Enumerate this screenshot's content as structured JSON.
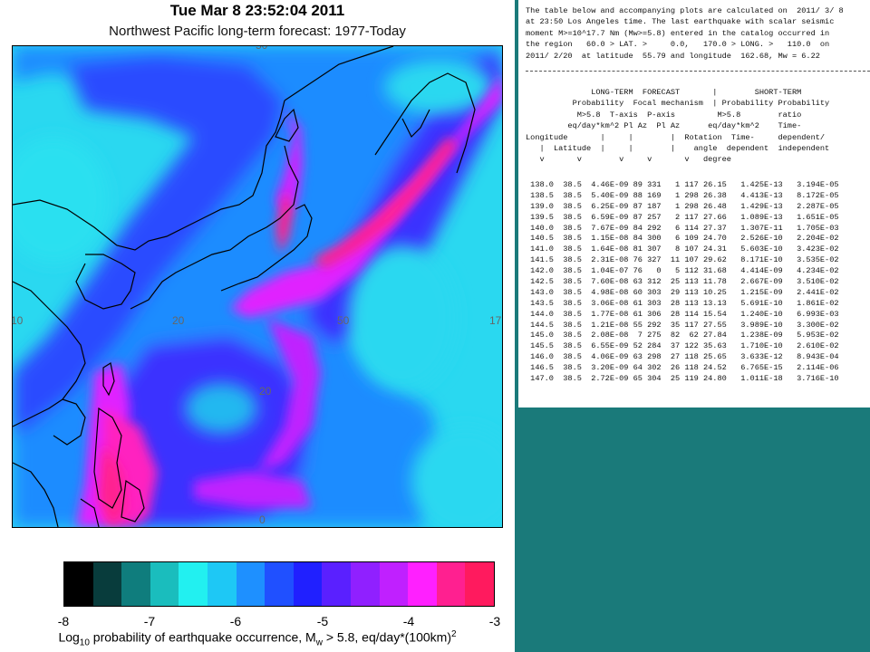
{
  "header": {
    "datetime": "Tue Mar  8 23:52:04 2011",
    "subtitle": "Northwest Pacific long-term forecast: 1977-Today"
  },
  "map": {
    "lon_ticks": [
      "10",
      "20",
      "50",
      "17"
    ],
    "lat_ticks": [
      "20",
      "0"
    ],
    "top_tick": "50"
  },
  "colorbar": {
    "colors": [
      "#000000",
      "#083c3c",
      "#0f7d7d",
      "#1abdbd",
      "#22f0f0",
      "#1ec8f5",
      "#1e90ff",
      "#2050ff",
      "#2020ff",
      "#5a20ff",
      "#9020ff",
      "#c020ff",
      "#ff20ff",
      "#ff2090",
      "#ff1a5e"
    ],
    "labels": [
      "-8",
      "-7",
      "-6",
      "-5",
      "-4",
      "-3"
    ],
    "caption_prefix": "Log",
    "caption_sub": "10",
    "caption_mid": " probability of earthquake occurrence, M",
    "caption_sub2": "w",
    "caption_end": " > 5.8, eq/day*(100km)",
    "caption_sup": "2"
  },
  "report": {
    "intro_lines": [
      "The table below and accompanying plots are calculated on  2011/ 3/ 8",
      "at 23:50 Los Angeles time. The last earthquake with scalar seismic",
      "moment M>=10^17.7 Nm (Mw>=5.8) entered in the catalog occurred in",
      "the region   60.0 > LAT. >     0.0,   170.0 > LONG. >   110.0  on",
      "2011/ 2/20  at latitude  55.79 and longitude  162.68, Mw = 6.22"
    ],
    "head_lines": [
      "              LONG-TERM  FORECAST       |        SHORT-TERM",
      "          Probability  Focal mechanism  | Probability Probability",
      "           M>5.8  T-axis  P-axis         M>5.8        ratio",
      "         eq/day*km^2 Pl Az  Pl Az      eq/day*km^2    Time-",
      "Longitude       |     |        |  Rotation  Time-     dependent/",
      "   |  Latitude  |     |        |    angle  dependent  independent",
      "   v       v        v     v       v   degree"
    ],
    "rows": [
      [
        "138.0",
        "38.5",
        "4.46E-09",
        "89",
        "331",
        "1",
        "117",
        "26.15",
        "1.425E-13",
        "3.194E-05"
      ],
      [
        "138.5",
        "38.5",
        "5.40E-09",
        "88",
        "169",
        "1",
        "298",
        "26.38",
        "4.413E-13",
        "8.172E-05"
      ],
      [
        "139.0",
        "38.5",
        "6.25E-09",
        "87",
        "187",
        "1",
        "298",
        "26.48",
        "1.429E-13",
        "2.287E-05"
      ],
      [
        "139.5",
        "38.5",
        "6.59E-09",
        "87",
        "257",
        "2",
        "117",
        "27.66",
        "1.089E-13",
        "1.651E-05"
      ],
      [
        "140.0",
        "38.5",
        "7.67E-09",
        "84",
        "292",
        "6",
        "114",
        "27.37",
        "1.307E-11",
        "1.705E-03"
      ],
      [
        "140.5",
        "38.5",
        "1.15E-08",
        "84",
        "300",
        "6",
        "109",
        "24.70",
        "2.526E-10",
        "2.204E-02"
      ],
      [
        "141.0",
        "38.5",
        "1.64E-08",
        "81",
        "307",
        "8",
        "107",
        "24.31",
        "5.603E-10",
        "3.423E-02"
      ],
      [
        "141.5",
        "38.5",
        "2.31E-08",
        "76",
        "327",
        "11",
        "107",
        "29.62",
        "8.171E-10",
        "3.535E-02"
      ],
      [
        "142.0",
        "38.5",
        "1.04E-07",
        "76",
        "0",
        "5",
        "112",
        "31.68",
        "4.414E-09",
        "4.234E-02"
      ],
      [
        "142.5",
        "38.5",
        "7.60E-08",
        "63",
        "312",
        "25",
        "113",
        "11.78",
        "2.667E-09",
        "3.510E-02"
      ],
      [
        "143.0",
        "38.5",
        "4.98E-08",
        "60",
        "303",
        "29",
        "113",
        "10.25",
        "1.215E-09",
        "2.441E-02"
      ],
      [
        "143.5",
        "38.5",
        "3.06E-08",
        "61",
        "303",
        "28",
        "113",
        "13.13",
        "5.691E-10",
        "1.861E-02"
      ],
      [
        "144.0",
        "38.5",
        "1.77E-08",
        "61",
        "306",
        "28",
        "114",
        "15.54",
        "1.240E-10",
        "6.993E-03"
      ],
      [
        "144.5",
        "38.5",
        "1.21E-08",
        "55",
        "292",
        "35",
        "117",
        "27.55",
        "3.989E-10",
        "3.300E-02"
      ],
      [
        "145.0",
        "38.5",
        "2.08E-08",
        "7",
        "275",
        "82",
        "62",
        "27.84",
        "1.238E-09",
        "5.953E-02"
      ],
      [
        "145.5",
        "38.5",
        "6.55E-09",
        "52",
        "284",
        "37",
        "122",
        "35.63",
        "1.710E-10",
        "2.610E-02"
      ],
      [
        "146.0",
        "38.5",
        "4.06E-09",
        "63",
        "298",
        "27",
        "118",
        "25.65",
        "3.633E-12",
        "8.943E-04"
      ],
      [
        "146.5",
        "38.5",
        "3.20E-09",
        "64",
        "302",
        "26",
        "118",
        "24.52",
        "6.765E-15",
        "2.114E-06"
      ],
      [
        "147.0",
        "38.5",
        "2.72E-09",
        "65",
        "304",
        "25",
        "119",
        "24.80",
        "1.011E-18",
        "3.716E-10"
      ]
    ]
  }
}
